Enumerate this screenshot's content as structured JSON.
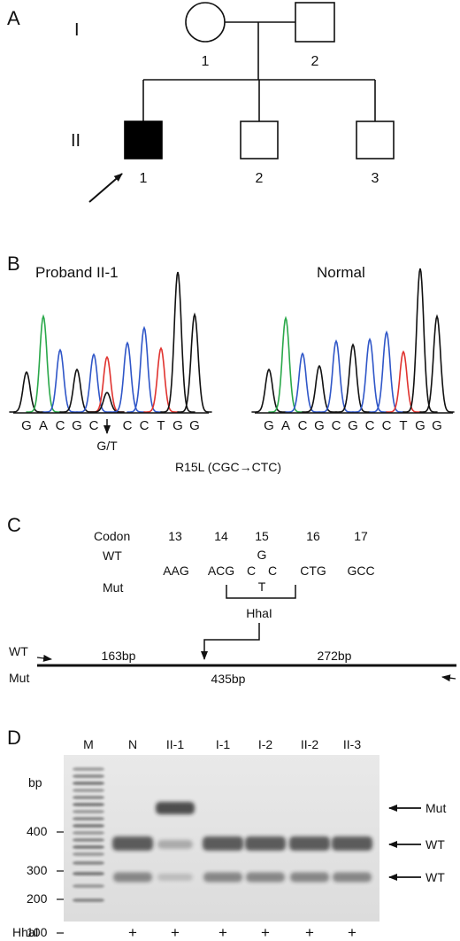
{
  "panel_a": {
    "letter": "A",
    "generations": [
      "I",
      "II"
    ],
    "individuals_gen1": [
      "1",
      "2"
    ],
    "individuals_gen2": [
      "1",
      "2",
      "3"
    ]
  },
  "panel_b": {
    "letter": "B",
    "proband_title": "Proband II-1",
    "normal_title": "Normal",
    "proband_sequence": [
      "G",
      "A",
      "C",
      "G",
      "C",
      "",
      "C",
      "C",
      "T",
      "G",
      "G"
    ],
    "normal_sequence": [
      "G",
      "A",
      "C",
      "G",
      "C",
      "G",
      "C",
      "C",
      "T",
      "G",
      "G"
    ],
    "mutation_base_label": "G/T",
    "mutation_caption": "R15L (CGC→CTC)",
    "trace_colors": {
      "G": "#111111",
      "A": "#2aa84a",
      "C": "#2f56c8",
      "T": "#e0332f"
    }
  },
  "panel_c": {
    "letter": "C",
    "codon_label": "Codon",
    "codon_numbers": [
      "13",
      "14",
      "15",
      "16",
      "17"
    ],
    "wt_label": "WT",
    "mut_label": "Mut",
    "codons_left": [
      "AAG",
      "ACG"
    ],
    "codon15_first": "C",
    "codon15_wt_middle": "G",
    "codon15_mut_middle": "T",
    "codon15_last": "C",
    "codons_right": [
      "CTG",
      "GCC"
    ],
    "enzyme": "HhaI",
    "map_wt_label": "WT",
    "map_mut_label": "Mut",
    "fragment_left": "163bp",
    "fragment_right": "272bp",
    "fragment_full": "435bp"
  },
  "panel_d": {
    "letter": "D",
    "lane_labels": [
      "M",
      "N",
      "II-1",
      "I-1",
      "I-2",
      "II-2",
      "II-3"
    ],
    "bp_unit": "bp",
    "ladder_marks": [
      "400",
      "300",
      "200",
      "100"
    ],
    "band_labels": {
      "mut": "Mut",
      "wt_upper": "WT",
      "wt_lower": "WT"
    },
    "enzyme_row_label": "HhaI",
    "enzyme_signs": [
      "+",
      "+",
      "+",
      "+",
      "+",
      "+"
    ]
  }
}
